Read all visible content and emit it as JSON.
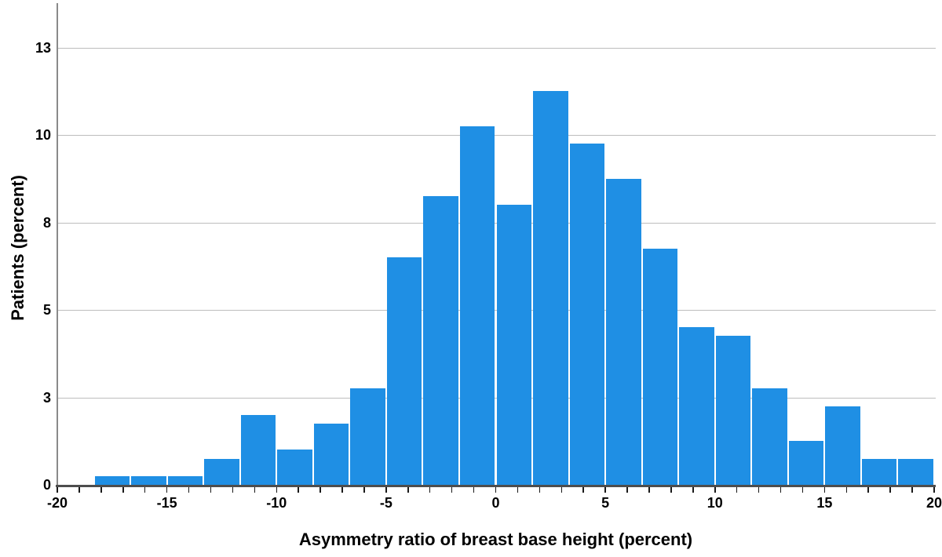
{
  "chart_data": {
    "type": "bar",
    "subtype": "histogram",
    "title": "",
    "xlabel": "Asymmetry ratio of breast base height (percent)",
    "ylabel": "Patients (percent)",
    "xlim": [
      -20,
      20
    ],
    "ylim": [
      0,
      13.77
    ],
    "grid": true,
    "legend": false,
    "bin_start": -18.3333,
    "bin_width": 1.6667,
    "values": [
      0.25,
      0.25,
      0.25,
      0.75,
      2.0,
      1.0,
      1.75,
      2.75,
      6.5,
      8.25,
      10.25,
      8.0,
      11.25,
      9.75,
      8.75,
      6.75,
      4.5,
      4.25,
      2.75,
      1.25,
      2.25,
      0.75,
      0.75
    ],
    "bin_edges_note": "23 bins of width 5/3 from -18.33 to 20",
    "x_ticks": [
      {
        "v": -20,
        "label": "-20"
      },
      {
        "v": -15,
        "label": "-15"
      },
      {
        "v": -10,
        "label": "-10"
      },
      {
        "v": -5,
        "label": "-5"
      },
      {
        "v": 0,
        "label": "0"
      },
      {
        "v": 5,
        "label": "5"
      },
      {
        "v": 10,
        "label": "10"
      },
      {
        "v": 15,
        "label": "15"
      },
      {
        "v": 20,
        "label": "20"
      }
    ],
    "x_minor_tick_step": 1,
    "y_ticks": [
      {
        "v": 0,
        "label": "0"
      },
      {
        "v": 2.5,
        "label": "3"
      },
      {
        "v": 5,
        "label": "5"
      },
      {
        "v": 7.5,
        "label": "8"
      },
      {
        "v": 10,
        "label": "10"
      },
      {
        "v": 12.5,
        "label": "13"
      }
    ],
    "colors": {
      "bar": "#1F8FE4",
      "gridline": "#BDBDBD",
      "y_axis_line": "#8A8A8A",
      "x_axis_line": "#4D4D4D",
      "tick_mark": "#1A1A1A",
      "text": "#000000",
      "background": "#FFFFFF"
    }
  }
}
